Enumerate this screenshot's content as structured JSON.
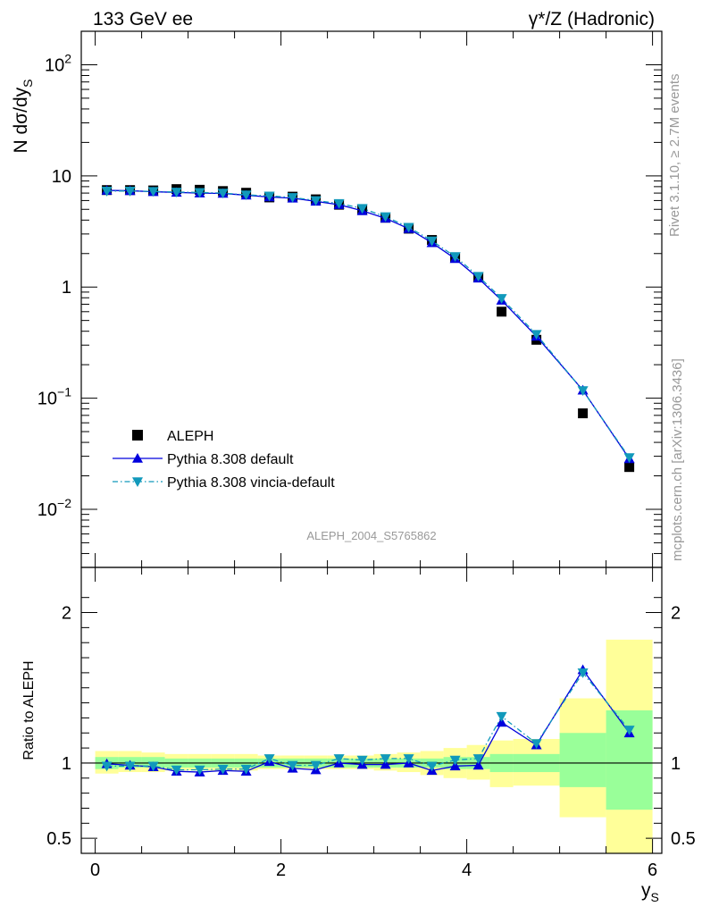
{
  "header": {
    "left_title": "133 GeV ee",
    "right_title": "γ*/Z (Hadronic)"
  },
  "side_text": {
    "rivet": "Rivet 3.1.10, ≥ 2.7M events",
    "mcplots": "mcplots.cern.ch [arXiv:1306.3436]"
  },
  "watermark": "ALEPH_2004_S5765862",
  "colors": {
    "data": "#000000",
    "default": "#0000dd",
    "vincia": "#1199bb",
    "band_inner": "#99ff99",
    "band_outer": "#ffff99"
  },
  "chart_data": [
    {
      "type": "scatter",
      "panel": "main",
      "ylabel": "N dσ/dy_S",
      "yscale": "log",
      "ylim": [
        0.003,
        200
      ],
      "xlim": [
        -0.15,
        6.1
      ],
      "ytick_labels": [
        "10^-2",
        "10^-1",
        "1",
        "10",
        "10^2"
      ],
      "legend_position": "bottom-left",
      "x": [
        0.125,
        0.375,
        0.625,
        0.875,
        1.125,
        1.375,
        1.625,
        1.875,
        2.125,
        2.375,
        2.625,
        2.875,
        3.125,
        3.375,
        3.625,
        3.875,
        4.125,
        4.375,
        4.75,
        5.25,
        5.75
      ],
      "series": [
        {
          "name": "ALEPH",
          "style": "square",
          "values": [
            7.45,
            7.45,
            7.4,
            7.6,
            7.5,
            7.3,
            7.05,
            6.4,
            6.5,
            6.15,
            5.5,
            5.0,
            4.2,
            3.35,
            2.65,
            1.85,
            1.22,
            0.6,
            0.335,
            0.073,
            0.024
          ]
        },
        {
          "name": "Pythia 8.308 default",
          "style": "triangle-up",
          "line": "solid",
          "values": [
            7.4,
            7.35,
            7.2,
            7.1,
            7.0,
            6.95,
            6.7,
            6.45,
            6.3,
            5.9,
            5.5,
            4.85,
            4.15,
            3.35,
            2.5,
            1.8,
            1.2,
            0.76,
            0.36,
            0.118,
            0.0285
          ]
        },
        {
          "name": "Pythia 8.308 vincia-default",
          "style": "triangle-down",
          "line": "dashdot",
          "values": [
            7.3,
            7.3,
            7.25,
            7.15,
            7.1,
            7.0,
            6.75,
            6.6,
            6.4,
            6.0,
            5.65,
            5.1,
            4.3,
            3.45,
            2.6,
            1.88,
            1.25,
            0.79,
            0.375,
            0.117,
            0.0292
          ]
        }
      ]
    },
    {
      "type": "scatter",
      "panel": "ratio",
      "ylabel": "Ratio to ALEPH",
      "xlabel": "y_S",
      "ylim": [
        0.4,
        2.3
      ],
      "xlim": [
        -0.15,
        6.1
      ],
      "xtick_labels": [
        "0",
        "2",
        "4",
        "6"
      ],
      "ytick_labels": [
        "0.5",
        "1",
        "2"
      ],
      "x": [
        0.125,
        0.375,
        0.625,
        0.875,
        1.125,
        1.375,
        1.625,
        1.875,
        2.125,
        2.375,
        2.625,
        2.875,
        3.125,
        3.375,
        3.625,
        3.875,
        4.125,
        4.375,
        4.75,
        5.25,
        5.75
      ],
      "bands": {
        "edges": [
          0,
          0.25,
          0.5,
          0.75,
          1.0,
          1.25,
          1.5,
          1.75,
          2.0,
          2.25,
          2.5,
          2.75,
          3.0,
          3.25,
          3.5,
          3.75,
          4.0,
          4.25,
          4.5,
          5.0,
          5.5,
          6.0
        ],
        "inner": [
          [
            0.96,
            1.04
          ],
          [
            0.97,
            1.04
          ],
          [
            0.97,
            1.04
          ],
          [
            0.97,
            1.03
          ],
          [
            0.97,
            1.03
          ],
          [
            0.97,
            1.03
          ],
          [
            0.97,
            1.03
          ],
          [
            0.97,
            1.03
          ],
          [
            0.97,
            1.03
          ],
          [
            0.97,
            1.03
          ],
          [
            0.97,
            1.03
          ],
          [
            0.97,
            1.03
          ],
          [
            0.97,
            1.03
          ],
          [
            0.97,
            1.03
          ],
          [
            0.97,
            1.03
          ],
          [
            0.96,
            1.04
          ],
          [
            0.96,
            1.04
          ],
          [
            0.94,
            1.06
          ],
          [
            0.94,
            1.06
          ],
          [
            0.84,
            1.2
          ],
          [
            0.69,
            1.35
          ]
        ],
        "outer": [
          [
            0.93,
            1.08
          ],
          [
            0.94,
            1.08
          ],
          [
            0.94,
            1.07
          ],
          [
            0.95,
            1.06
          ],
          [
            0.95,
            1.06
          ],
          [
            0.95,
            1.06
          ],
          [
            0.95,
            1.06
          ],
          [
            0.96,
            1.05
          ],
          [
            0.96,
            1.05
          ],
          [
            0.96,
            1.05
          ],
          [
            0.96,
            1.05
          ],
          [
            0.96,
            1.05
          ],
          [
            0.95,
            1.06
          ],
          [
            0.94,
            1.07
          ],
          [
            0.92,
            1.08
          ],
          [
            0.9,
            1.1
          ],
          [
            0.89,
            1.12
          ],
          [
            0.84,
            1.15
          ],
          [
            0.85,
            1.16
          ],
          [
            0.64,
            1.43
          ],
          [
            0.35,
            1.82
          ]
        ]
      },
      "series": [
        {
          "name": "Pythia 8.308 default",
          "style": "triangle-up",
          "line": "solid",
          "values": [
            0.995,
            0.985,
            0.975,
            0.945,
            0.94,
            0.95,
            0.945,
            1.01,
            0.965,
            0.955,
            1.0,
            0.99,
            0.99,
            1.0,
            0.95,
            0.98,
            0.985,
            1.27,
            1.12,
            1.62,
            1.2
          ]
        },
        {
          "name": "Pythia 8.308 vincia-default",
          "style": "triangle-down",
          "line": "dashdot",
          "values": [
            0.98,
            0.98,
            0.98,
            0.955,
            0.955,
            0.96,
            0.96,
            1.03,
            0.985,
            0.985,
            1.03,
            1.02,
            1.03,
            1.03,
            0.98,
            1.02,
            1.03,
            1.31,
            1.13,
            1.6,
            1.22
          ]
        }
      ]
    }
  ]
}
